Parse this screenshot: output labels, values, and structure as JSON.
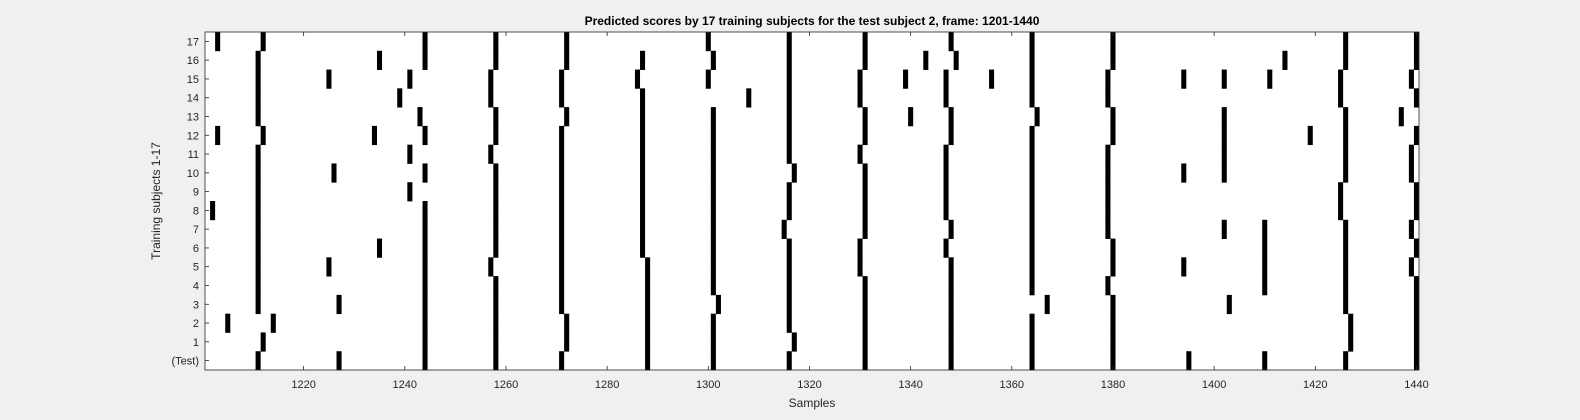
{
  "chart_data": {
    "type": "heatmap",
    "title": "Predicted scores by 17 training subjects for the test subject 2, frame: 1201-1440",
    "xlabel": "Samples",
    "ylabel": "Training subjects 1-17",
    "xlim": [
      1201,
      1440
    ],
    "x_ticks": [
      "1220",
      "1240",
      "1260",
      "1280",
      "1300",
      "1320",
      "1340",
      "1360",
      "1380",
      "1400",
      "1420",
      "1440"
    ],
    "rows": [
      {
        "label": "17",
        "events": [
          1203,
          1212,
          1244,
          1258,
          1272,
          1300,
          1316,
          1331,
          1348,
          1364,
          1380,
          1426,
          1440
        ]
      },
      {
        "label": "16",
        "events": [
          1211,
          1235,
          1244,
          1258,
          1272,
          1287,
          1301,
          1316,
          1331,
          1343,
          1349,
          1364,
          1380,
          1414,
          1426,
          1440
        ]
      },
      {
        "label": "15",
        "events": [
          1211,
          1225,
          1241,
          1257,
          1271,
          1286,
          1300,
          1316,
          1330,
          1339,
          1347,
          1356,
          1364,
          1379,
          1394,
          1402,
          1411,
          1425,
          1439
        ]
      },
      {
        "label": "14",
        "events": [
          1211,
          1239,
          1257,
          1271,
          1287,
          1308,
          1316,
          1330,
          1347,
          1364,
          1379,
          1425,
          1440
        ]
      },
      {
        "label": "13",
        "events": [
          1211,
          1243,
          1258,
          1272,
          1287,
          1301,
          1316,
          1331,
          1340,
          1348,
          1365,
          1380,
          1402,
          1426,
          1437
        ]
      },
      {
        "label": "12",
        "events": [
          1203,
          1212,
          1234,
          1244,
          1258,
          1271,
          1287,
          1301,
          1316,
          1331,
          1348,
          1364,
          1380,
          1402,
          1419,
          1426,
          1440
        ]
      },
      {
        "label": "11",
        "events": [
          1211,
          1241,
          1257,
          1271,
          1287,
          1301,
          1316,
          1330,
          1347,
          1364,
          1379,
          1402,
          1426,
          1439
        ]
      },
      {
        "label": "10",
        "events": [
          1211,
          1226,
          1244,
          1258,
          1271,
          1287,
          1301,
          1317,
          1331,
          1347,
          1364,
          1379,
          1394,
          1402,
          1426,
          1439
        ]
      },
      {
        "label": "9",
        "events": [
          1211,
          1241,
          1258,
          1271,
          1287,
          1301,
          1316,
          1331,
          1347,
          1364,
          1379,
          1425,
          1440
        ]
      },
      {
        "label": "8",
        "events": [
          1202,
          1211,
          1244,
          1258,
          1271,
          1287,
          1301,
          1316,
          1331,
          1347,
          1364,
          1379,
          1425,
          1440
        ]
      },
      {
        "label": "7",
        "events": [
          1211,
          1244,
          1258,
          1271,
          1287,
          1301,
          1315,
          1331,
          1348,
          1364,
          1379,
          1402,
          1410,
          1426,
          1439
        ]
      },
      {
        "label": "6",
        "events": [
          1211,
          1235,
          1244,
          1258,
          1271,
          1287,
          1301,
          1316,
          1330,
          1347,
          1364,
          1380,
          1410,
          1426,
          1440
        ]
      },
      {
        "label": "5",
        "events": [
          1211,
          1225,
          1244,
          1257,
          1271,
          1288,
          1301,
          1316,
          1330,
          1348,
          1364,
          1380,
          1394,
          1410,
          1426,
          1439
        ]
      },
      {
        "label": "4",
        "events": [
          1211,
          1244,
          1258,
          1271,
          1288,
          1301,
          1316,
          1331,
          1348,
          1364,
          1379,
          1410,
          1426,
          1440
        ]
      },
      {
        "label": "3",
        "events": [
          1211,
          1227,
          1244,
          1258,
          1271,
          1288,
          1302,
          1316,
          1331,
          1348,
          1367,
          1380,
          1403,
          1426,
          1440
        ]
      },
      {
        "label": "2",
        "events": [
          1205,
          1214,
          1244,
          1258,
          1272,
          1288,
          1301,
          1316,
          1331,
          1348,
          1364,
          1380,
          1427,
          1440
        ]
      },
      {
        "label": "1",
        "events": [
          1212,
          1244,
          1258,
          1272,
          1288,
          1301,
          1317,
          1331,
          1348,
          1364,
          1380,
          1427,
          1440
        ]
      },
      {
        "label": "(Test)",
        "events": [
          1211,
          1227,
          1244,
          1258,
          1271,
          1288,
          1301,
          1316,
          1331,
          1348,
          1364,
          1380,
          1395,
          1410,
          1426,
          1440
        ]
      }
    ],
    "colors": {
      "mark": "#000000",
      "plot_background": "#ffffff",
      "figure_background": "#f0f0f0"
    }
  }
}
